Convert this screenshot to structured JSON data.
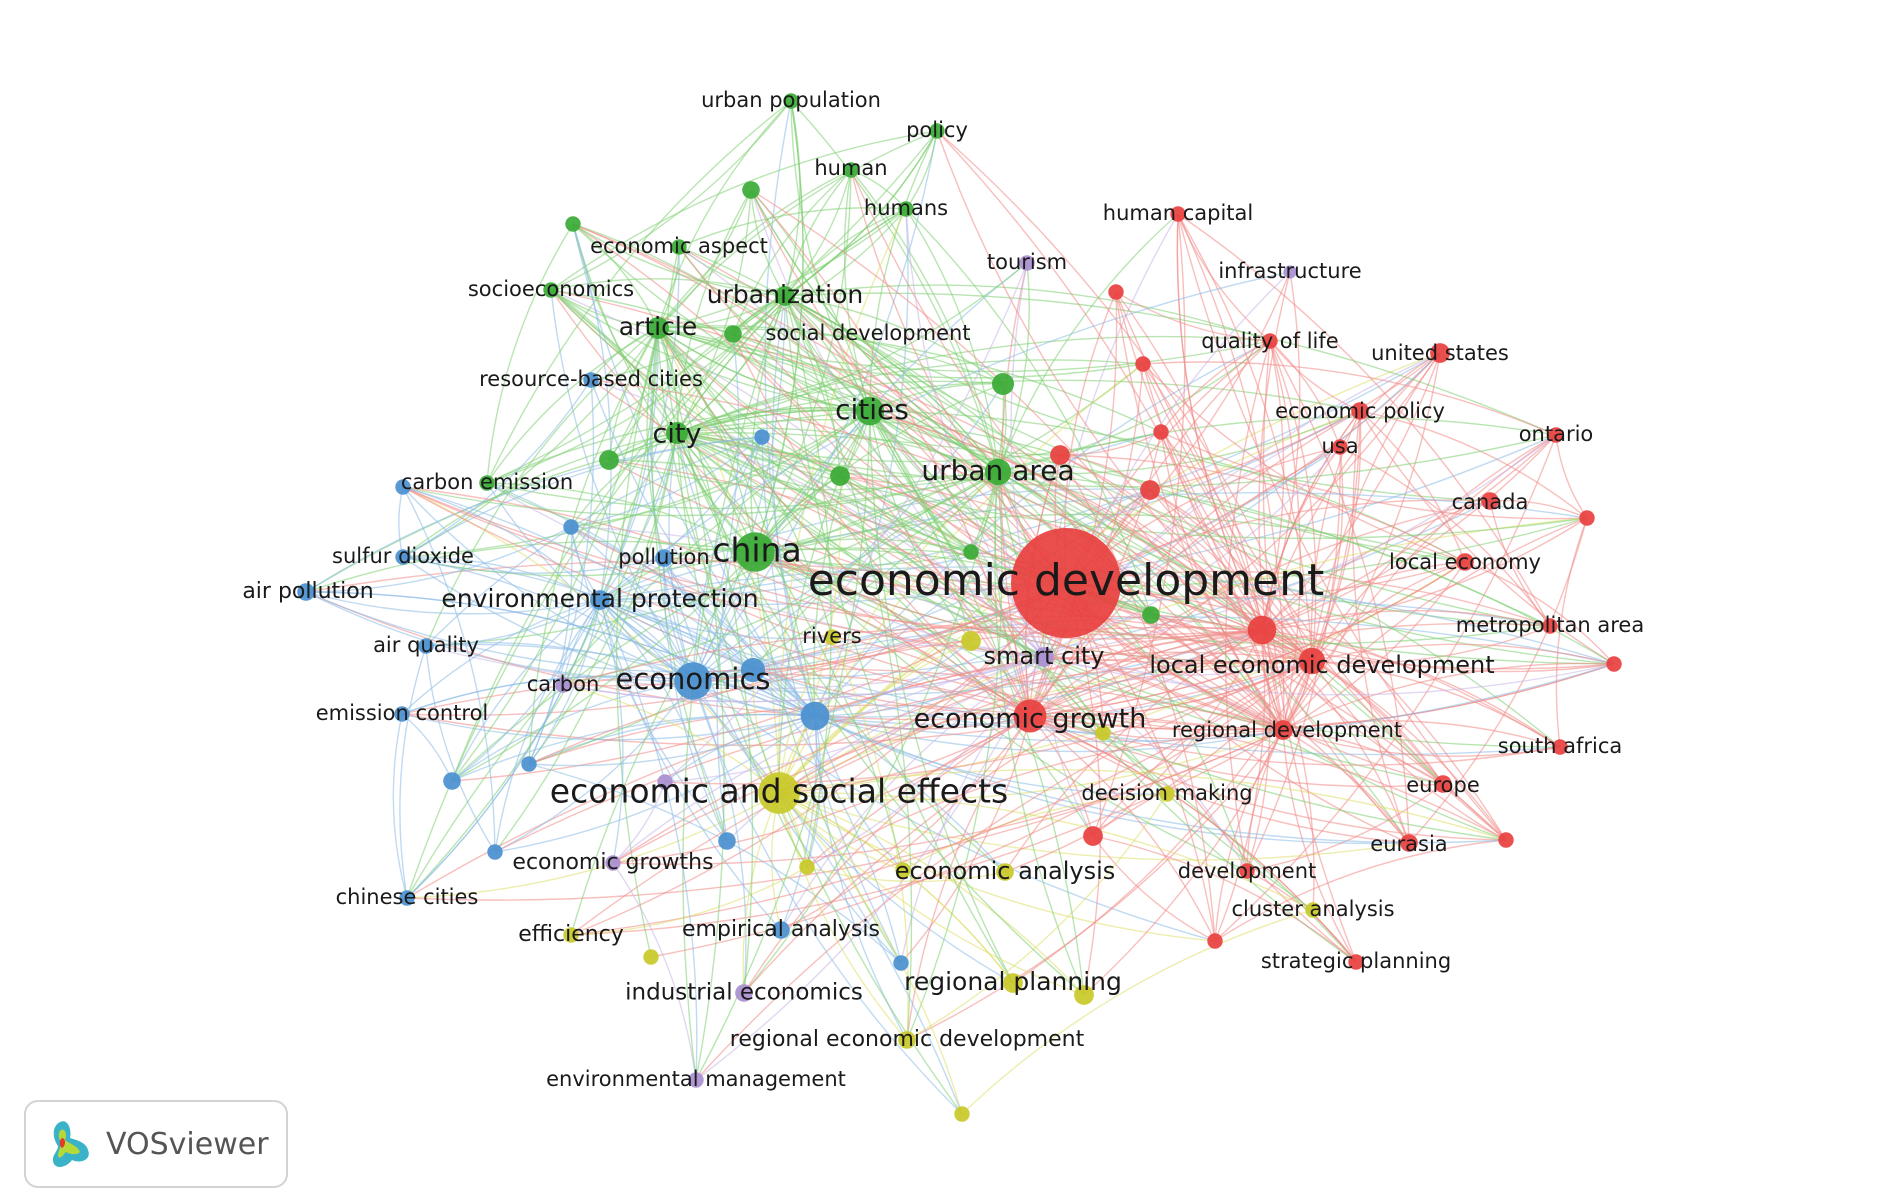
{
  "logo": {
    "text": "VOSviewer"
  },
  "cluster_colors": {
    "red": "#e8403f",
    "green": "#3aaa35",
    "blue": "#4a90d0",
    "yellow": "#c9c928",
    "purple": "#a98fd0"
  },
  "edge_colors": {
    "red": "#f08a87",
    "green": "#7fcf73",
    "blue": "#8dbbe6",
    "yellow": "#dede6a",
    "purple": "#c9b6e8"
  },
  "nodes": [
    {
      "id": "economic development",
      "label": "economic development",
      "cluster": "red",
      "weight": 5.0
    },
    {
      "id": "local economic development",
      "label": "local economic development",
      "cluster": "red",
      "weight": 1.2
    },
    {
      "id": "economic growth",
      "label": "economic growth",
      "cluster": "red",
      "weight": 1.5
    },
    {
      "id": "regional development",
      "label": "regional development",
      "cluster": "red",
      "weight": 0.9
    },
    {
      "id": "united states",
      "label": "united states",
      "cluster": "red",
      "weight": 0.9
    },
    {
      "id": "canada",
      "label": "canada",
      "cluster": "red",
      "weight": 0.8
    },
    {
      "id": "local economy",
      "label": "local economy",
      "cluster": "red",
      "weight": 0.8
    },
    {
      "id": "europe",
      "label": "europe",
      "cluster": "red",
      "weight": 0.8
    },
    {
      "id": "eurasia",
      "label": "eurasia",
      "cluster": "red",
      "weight": 0.8
    },
    {
      "id": "economic policy",
      "label": "economic policy",
      "cluster": "red",
      "weight": 0.8
    },
    {
      "id": "quality of life",
      "label": "quality of life",
      "cluster": "red",
      "weight": 0.7
    },
    {
      "id": "human capital",
      "label": "human capital",
      "cluster": "red",
      "weight": 0.7
    },
    {
      "id": "usa",
      "label": "usa",
      "cluster": "red",
      "weight": 0.7
    },
    {
      "id": "ontario",
      "label": "ontario",
      "cluster": "red",
      "weight": 0.7
    },
    {
      "id": "metropolitan area",
      "label": "metropolitan area",
      "cluster": "red",
      "weight": 0.7
    },
    {
      "id": "south africa",
      "label": "south africa",
      "cluster": "red",
      "weight": 0.7
    },
    {
      "id": "development",
      "label": "development",
      "cluster": "red",
      "weight": 0.7
    },
    {
      "id": "strategic planning",
      "label": "strategic planning",
      "cluster": "red",
      "weight": 0.7
    },
    {
      "id": "r1",
      "label": "",
      "cluster": "red",
      "weight": 1.3
    },
    {
      "id": "r2",
      "label": "",
      "cluster": "red",
      "weight": 0.9
    },
    {
      "id": "r3",
      "label": "",
      "cluster": "red",
      "weight": 0.7
    },
    {
      "id": "r4",
      "label": "",
      "cluster": "red",
      "weight": 0.7
    },
    {
      "id": "r5",
      "label": "",
      "cluster": "red",
      "weight": 0.9
    },
    {
      "id": "r6",
      "label": "",
      "cluster": "red",
      "weight": 0.7
    },
    {
      "id": "r7",
      "label": "",
      "cluster": "red",
      "weight": 0.7
    },
    {
      "id": "r8",
      "label": "",
      "cluster": "red",
      "weight": 0.7
    },
    {
      "id": "r9",
      "label": "",
      "cluster": "red",
      "weight": 0.7
    },
    {
      "id": "r10",
      "label": "",
      "cluster": "red",
      "weight": 0.9
    },
    {
      "id": "r11",
      "label": "",
      "cluster": "red",
      "weight": 0.7
    },
    {
      "id": "china",
      "label": "china",
      "cluster": "green",
      "weight": 1.8
    },
    {
      "id": "cities",
      "label": "cities",
      "cluster": "green",
      "weight": 1.3
    },
    {
      "id": "urban area",
      "label": "urban area",
      "cluster": "green",
      "weight": 1.2
    },
    {
      "id": "city",
      "label": "city",
      "cluster": "green",
      "weight": 1.0
    },
    {
      "id": "article",
      "label": "article",
      "cluster": "green",
      "weight": 1.0
    },
    {
      "id": "urbanization",
      "label": "urbanization",
      "cluster": "green",
      "weight": 0.9
    },
    {
      "id": "urban population",
      "label": "urban population",
      "cluster": "green",
      "weight": 0.7
    },
    {
      "id": "policy",
      "label": "policy",
      "cluster": "green",
      "weight": 0.7
    },
    {
      "id": "human",
      "label": "human",
      "cluster": "green",
      "weight": 0.7
    },
    {
      "id": "humans",
      "label": "humans",
      "cluster": "green",
      "weight": 0.7
    },
    {
      "id": "economic aspect",
      "label": "economic aspect",
      "cluster": "green",
      "weight": 0.7
    },
    {
      "id": "socioeconomics",
      "label": "socioeconomics",
      "cluster": "green",
      "weight": 0.7
    },
    {
      "id": "social development",
      "label": "social development",
      "cluster": "green",
      "weight": 0.8
    },
    {
      "id": "carbon emission",
      "label": "carbon emission",
      "cluster": "green",
      "weight": 0.7
    },
    {
      "id": "g1",
      "label": "",
      "cluster": "green",
      "weight": 0.7
    },
    {
      "id": "g2",
      "label": "",
      "cluster": "green",
      "weight": 0.8
    },
    {
      "id": "g3",
      "label": "",
      "cluster": "green",
      "weight": 1.0
    },
    {
      "id": "g4",
      "label": "",
      "cluster": "green",
      "weight": 0.9
    },
    {
      "id": "g5",
      "label": "",
      "cluster": "green",
      "weight": 0.9
    },
    {
      "id": "g6",
      "label": "",
      "cluster": "green",
      "weight": 0.8
    },
    {
      "id": "g7",
      "label": "",
      "cluster": "green",
      "weight": 0.7
    },
    {
      "id": "economics",
      "label": "economics",
      "cluster": "blue",
      "weight": 1.7
    },
    {
      "id": "environmental protection",
      "label": "environmental protection",
      "cluster": "blue",
      "weight": 0.9
    },
    {
      "id": "pollution",
      "label": "pollution",
      "cluster": "blue",
      "weight": 0.8
    },
    {
      "id": "air pollution",
      "label": "air pollution",
      "cluster": "blue",
      "weight": 0.8
    },
    {
      "id": "sulfur dioxide",
      "label": "sulfur dioxide",
      "cluster": "blue",
      "weight": 0.7
    },
    {
      "id": "air quality",
      "label": "air quality",
      "cluster": "blue",
      "weight": 0.7
    },
    {
      "id": "emission control",
      "label": "emission control",
      "cluster": "blue",
      "weight": 0.7
    },
    {
      "id": "chinese cities",
      "label": "chinese cities",
      "cluster": "blue",
      "weight": 0.7
    },
    {
      "id": "empirical analysis",
      "label": "empirical analysis",
      "cluster": "blue",
      "weight": 0.8
    },
    {
      "id": "resource-based cities",
      "label": "resource-based cities",
      "cluster": "blue",
      "weight": 0.7
    },
    {
      "id": "b1",
      "label": "",
      "cluster": "blue",
      "weight": 1.3
    },
    {
      "id": "b2",
      "label": "",
      "cluster": "blue",
      "weight": 1.1
    },
    {
      "id": "b3",
      "label": "",
      "cluster": "blue",
      "weight": 0.7
    },
    {
      "id": "b4",
      "label": "",
      "cluster": "blue",
      "weight": 0.7
    },
    {
      "id": "b5",
      "label": "",
      "cluster": "blue",
      "weight": 0.7
    },
    {
      "id": "b6",
      "label": "",
      "cluster": "blue",
      "weight": 0.8
    },
    {
      "id": "b7",
      "label": "",
      "cluster": "blue",
      "weight": 0.7
    },
    {
      "id": "b8",
      "label": "",
      "cluster": "blue",
      "weight": 0.7
    },
    {
      "id": "b9",
      "label": "",
      "cluster": "blue",
      "weight": 0.8
    },
    {
      "id": "b10",
      "label": "",
      "cluster": "blue",
      "weight": 0.7
    },
    {
      "id": "economic and social effects",
      "label": "economic and social effects",
      "cluster": "yellow",
      "weight": 1.9
    },
    {
      "id": "economic analysis",
      "label": "economic analysis",
      "cluster": "yellow",
      "weight": 0.8
    },
    {
      "id": "regional planning",
      "label": "regional planning",
      "cluster": "yellow",
      "weight": 0.9
    },
    {
      "id": "regional economic development",
      "label": "regional economic development",
      "cluster": "yellow",
      "weight": 0.8
    },
    {
      "id": "decision making",
      "label": "decision making",
      "cluster": "yellow",
      "weight": 0.7
    },
    {
      "id": "efficiency",
      "label": "efficiency",
      "cluster": "yellow",
      "weight": 0.7
    },
    {
      "id": "cluster analysis",
      "label": "cluster analysis",
      "cluster": "yellow",
      "weight": 0.7
    },
    {
      "id": "rivers",
      "label": "rivers",
      "cluster": "yellow",
      "weight": 0.7
    },
    {
      "id": "y1",
      "label": "",
      "cluster": "yellow",
      "weight": 0.9
    },
    {
      "id": "y2",
      "label": "",
      "cluster": "yellow",
      "weight": 0.9
    },
    {
      "id": "y3",
      "label": "",
      "cluster": "yellow",
      "weight": 0.7
    },
    {
      "id": "y4",
      "label": "",
      "cluster": "yellow",
      "weight": 0.7
    },
    {
      "id": "y5",
      "label": "",
      "cluster": "yellow",
      "weight": 0.7
    },
    {
      "id": "y6",
      "label": "",
      "cluster": "yellow",
      "weight": 0.7
    },
    {
      "id": "y7",
      "label": "",
      "cluster": "yellow",
      "weight": 0.7
    },
    {
      "id": "smart city",
      "label": "smart city",
      "cluster": "purple",
      "weight": 0.9
    },
    {
      "id": "tourism",
      "label": "tourism",
      "cluster": "purple",
      "weight": 0.7
    },
    {
      "id": "infrastructure",
      "label": "infrastructure",
      "cluster": "purple",
      "weight": 0.6
    },
    {
      "id": "carbon",
      "label": "carbon",
      "cluster": "purple",
      "weight": 0.7
    },
    {
      "id": "economic growths",
      "label": "economic growths",
      "cluster": "purple",
      "weight": 0.7
    },
    {
      "id": "industrial economics",
      "label": "industrial economics",
      "cluster": "purple",
      "weight": 0.8
    },
    {
      "id": "environmental management",
      "label": "environmental management",
      "cluster": "purple",
      "weight": 0.7
    },
    {
      "id": "p1",
      "label": "",
      "cluster": "purple",
      "weight": 0.7
    }
  ]
}
